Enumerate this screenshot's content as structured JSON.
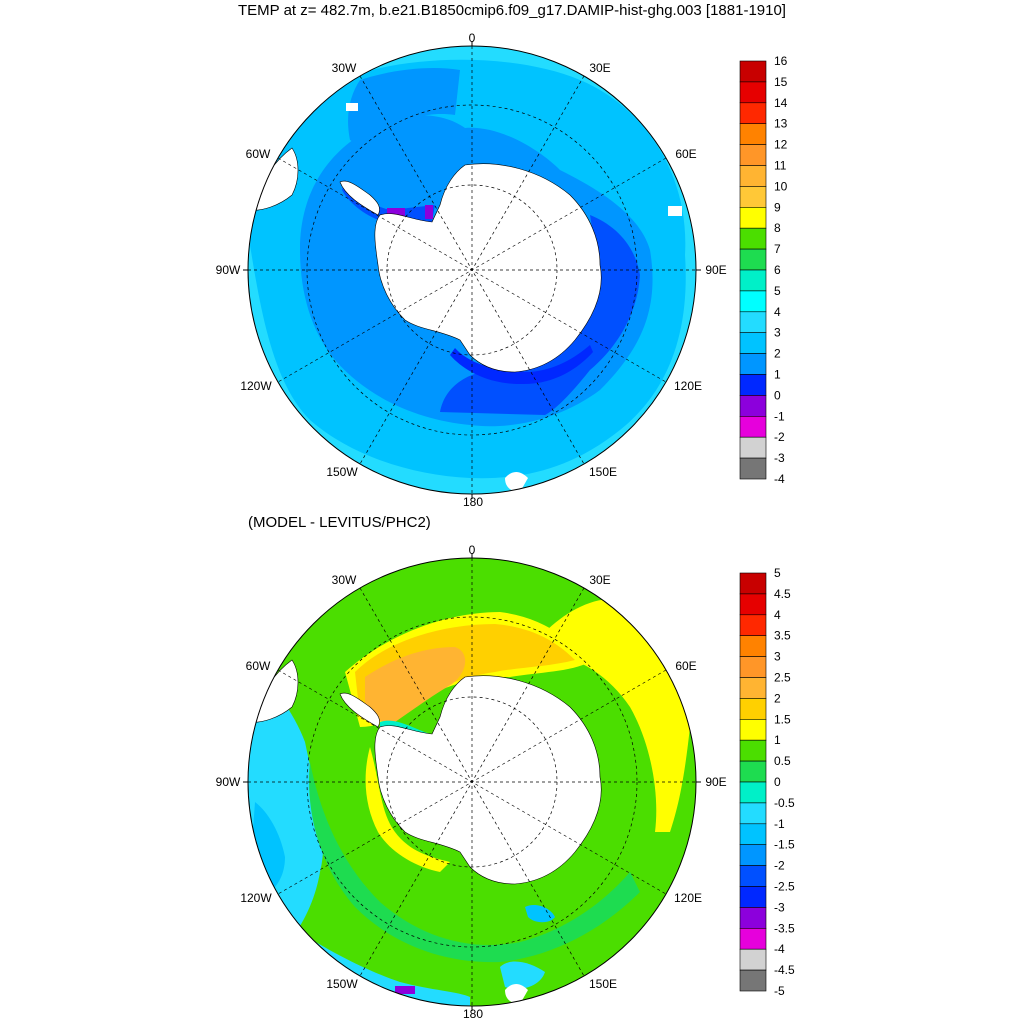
{
  "title": "TEMP at z= 482.7m, b.e21.B1850cmip6.f09_g17.DAMIP-hist-ghg.003 [1881-1910]",
  "subtitle": "(MODEL - LEVITUS/PHC2)",
  "map_labels": {
    "n0": "0",
    "n30e": "30E",
    "n60e": "60E",
    "n90e": "90E",
    "n120e": "120E",
    "n150e": "150E",
    "n180": "180",
    "n150w": "150W",
    "n120w": "120W",
    "n90w": "90W",
    "n60w": "60W",
    "n30w": "30W"
  },
  "colorbar_top": {
    "labels": [
      "16",
      "15",
      "14",
      "13",
      "12",
      "11",
      "10",
      "9",
      "8",
      "7",
      "6",
      "5",
      "4",
      "3",
      "2",
      "1",
      "0",
      "-1",
      "-2",
      "-3",
      "-4"
    ],
    "colors": [
      "#c80000",
      "#e60000",
      "#ff2800",
      "#ff8200",
      "#ff9628",
      "#ffb432",
      "#ffc837",
      "#ffff00",
      "#4bde00",
      "#1edc50",
      "#00f0c8",
      "#00ffff",
      "#23dcff",
      "#00c3ff",
      "#0096ff",
      "#0028ff",
      "#8c00dc",
      "#e600dc",
      "#d2d2d2",
      "#767676"
    ]
  },
  "colorbar_bottom": {
    "labels": [
      "5",
      "4.5",
      "4",
      "3.5",
      "3",
      "2.5",
      "2",
      "1.5",
      "1",
      "0.5",
      "0",
      "-0.5",
      "-1",
      "-1.5",
      "-2",
      "-2.5",
      "-3",
      "-3.5",
      "-4",
      "-4.5",
      "-5"
    ],
    "colors": [
      "#c80000",
      "#e60000",
      "#ff2800",
      "#ff8200",
      "#ff9628",
      "#ffb432",
      "#ffd000",
      "#ffff00",
      "#4bde00",
      "#1edc50",
      "#00f0c8",
      "#23dcff",
      "#00c3ff",
      "#0096ff",
      "#0050ff",
      "#0028ff",
      "#8c00dc",
      "#e600dc",
      "#d2d2d2",
      "#767676"
    ]
  },
  "field_colors": {
    "top_outer": "#23dcff",
    "top_mid": "#00c3ff",
    "top_inner": "#0096ff",
    "top_deep": "#0050ff",
    "top_cold": "#0028ff",
    "top_violet": "#8c00dc",
    "bot_base": "#4bde00",
    "bot_cool": "#23dcff",
    "bot_cooler": "#00c3ff",
    "bot_blue": "#0096ff",
    "bot_deep": "#0028ff",
    "bot_warm": "#ffd000",
    "bot_warmer": "#ffb432",
    "bot_yellow": "#ffff00",
    "bot_green2": "#1edc50",
    "land": "#ffffff"
  }
}
